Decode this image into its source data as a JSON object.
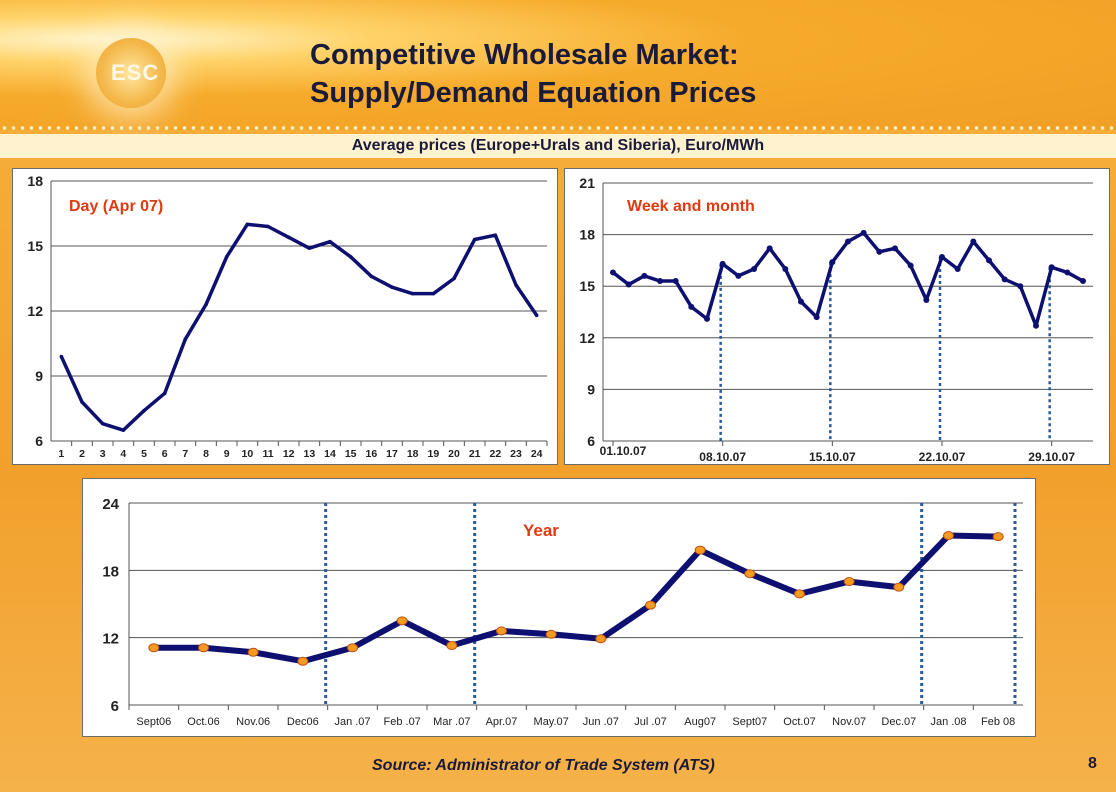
{
  "header": {
    "title": "Competitive Wholesale Market:\nSupply/Demand Equation Prices",
    "logo_text": "ESC",
    "subtitle": "Average prices (Europe+Urals and Siberia), Euro/MWh"
  },
  "footer": {
    "source": "Source: Administrator of Trade System (ATS)",
    "page_number": "8"
  },
  "colors": {
    "line": "#0d1070",
    "label": "#e03a10",
    "marker_fill": "#f59b1f",
    "marker_stroke": "#c0501a",
    "grid": "#555555",
    "dashed": "#2a5a9a"
  },
  "chart_data": [
    {
      "type": "line",
      "title": "Day (Apr 07)",
      "ylim": [
        6,
        18
      ],
      "yticks": [
        6,
        9,
        12,
        15,
        18
      ],
      "categories": [
        "1",
        "2",
        "3",
        "4",
        "5",
        "6",
        "7",
        "8",
        "9",
        "10",
        "11",
        "12",
        "13",
        "14",
        "15",
        "16",
        "17",
        "18",
        "19",
        "20",
        "21",
        "22",
        "23",
        "24"
      ],
      "values": [
        9.9,
        7.8,
        6.8,
        6.5,
        7.4,
        8.2,
        10.7,
        12.3,
        14.5,
        16.0,
        15.9,
        15.4,
        14.9,
        15.2,
        14.5,
        13.6,
        13.1,
        12.8,
        12.8,
        13.5,
        15.3,
        15.5,
        13.2,
        11.8
      ],
      "grid": true
    },
    {
      "type": "line",
      "title": "Week and month",
      "ylim": [
        6,
        21
      ],
      "yticks": [
        6,
        9,
        12,
        15,
        18,
        21
      ],
      "xticks": [
        "01.10.07",
        "08.10.07",
        "15.10.07",
        "22.10.07",
        "29.10.07"
      ],
      "xtick_days": [
        1,
        8,
        15,
        22,
        29
      ],
      "x": [
        1,
        2,
        3,
        4,
        5,
        6,
        7,
        8,
        9,
        10,
        11,
        12,
        13,
        14,
        15,
        16,
        17,
        18,
        19,
        20,
        21,
        22,
        23,
        24,
        25,
        26,
        27,
        28,
        29,
        30,
        31
      ],
      "values": [
        15.8,
        15.1,
        15.6,
        15.3,
        15.3,
        13.8,
        13.1,
        16.3,
        15.6,
        16.0,
        17.2,
        16.0,
        14.1,
        13.2,
        16.4,
        17.6,
        18.1,
        17.0,
        17.2,
        16.2,
        14.2,
        16.7,
        16.0,
        17.6,
        16.5,
        15.4,
        15.0,
        12.7,
        16.1,
        15.8,
        15.3
      ],
      "dashed_markers": [
        "08.10.07",
        "15.10.07",
        "22.10.07",
        "29.10.07"
      ],
      "grid": true
    },
    {
      "type": "line",
      "title": "Year",
      "ylim": [
        6,
        24
      ],
      "yticks": [
        6,
        12,
        18,
        24
      ],
      "categories": [
        "Sept06",
        "Oct.06",
        "Nov.06",
        "Dec06",
        "Jan .07",
        "Feb .07",
        "Mar .07",
        "Apr.07",
        "May.07",
        "Jun .07",
        "Jul .07",
        "Aug07",
        "Sept07",
        "Oct.07",
        "Nov.07",
        "Dec.07",
        "Jan .08",
        "Feb 08"
      ],
      "values": [
        11.1,
        11.1,
        10.7,
        9.9,
        11.1,
        13.5,
        11.3,
        12.6,
        12.3,
        11.9,
        14.9,
        19.8,
        17.7,
        15.9,
        17.0,
        16.5,
        21.1,
        21.0
      ],
      "dashed_markers": [
        "Dec06",
        "Mar .07",
        "Dec.07",
        "Feb 08"
      ],
      "grid": true
    }
  ]
}
